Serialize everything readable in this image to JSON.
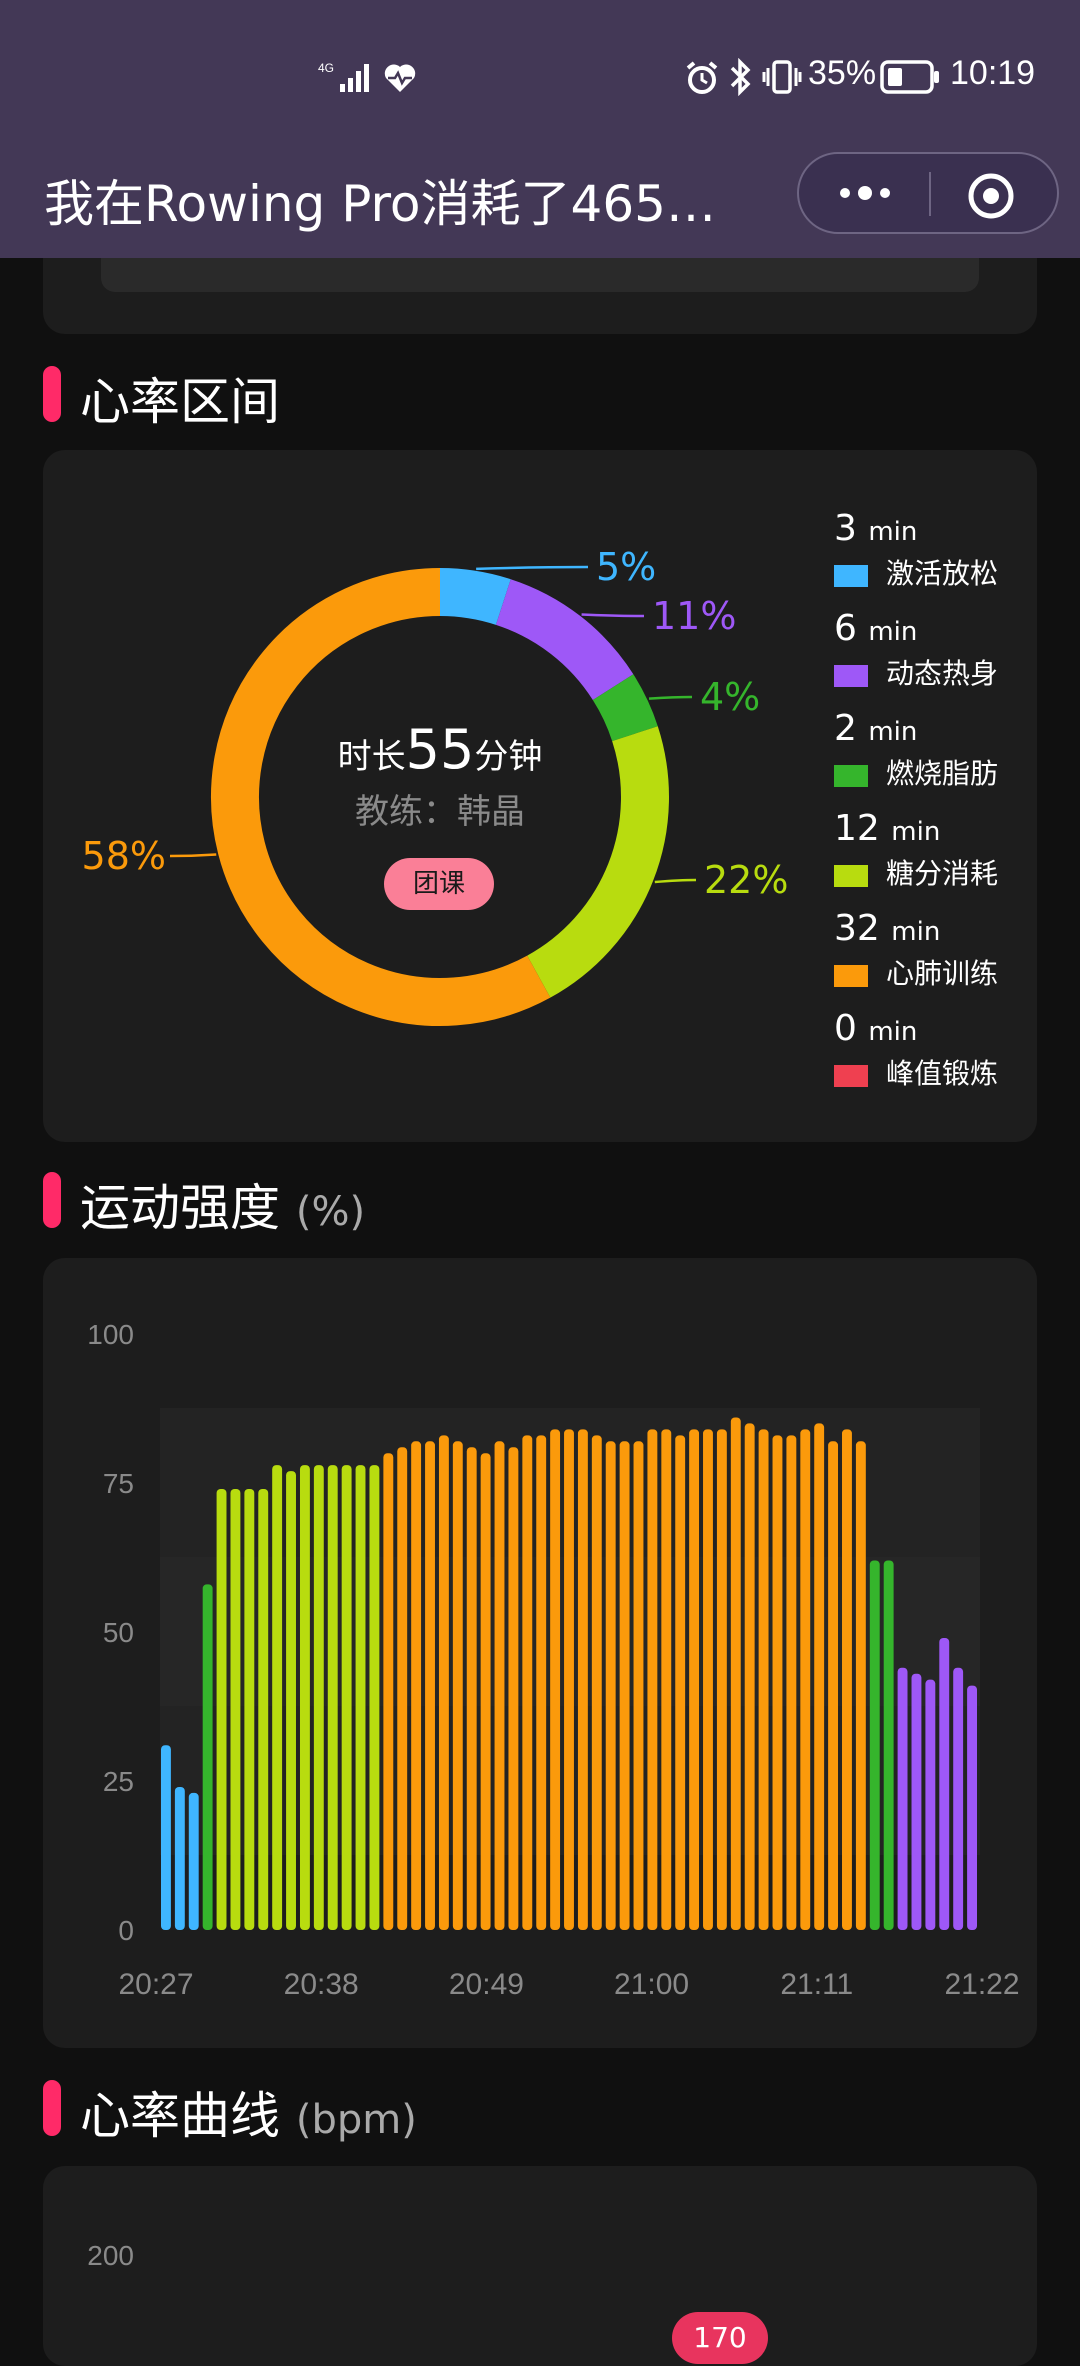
{
  "status_bar": {
    "network": "4G",
    "battery": "35%",
    "time": "10:19"
  },
  "nav": {
    "title": "我在Rowing Pro消耗了465…"
  },
  "heart_zone": {
    "title": "心率区间",
    "center_prefix": "时长",
    "center_value": "55",
    "center_suffix": "分钟",
    "coach": "教练：韩晶",
    "badge": "团课",
    "zones": [
      {
        "name": "激活放松",
        "minutes": "3",
        "unit": "min",
        "pct": "5%",
        "value": 5,
        "color": "#3fb6ff"
      },
      {
        "name": "动态热身",
        "minutes": "6",
        "unit": "min",
        "pct": "11%",
        "value": 11,
        "color": "#9e58f7"
      },
      {
        "name": "燃烧脂肪",
        "minutes": "2",
        "unit": "min",
        "pct": "4%",
        "value": 4,
        "color": "#35b52c"
      },
      {
        "name": "糖分消耗",
        "minutes": "12",
        "unit": "min",
        "pct": "22%",
        "value": 22,
        "color": "#b8dc0f"
      },
      {
        "name": "心肺训练",
        "minutes": "32",
        "unit": "min",
        "pct": "58%",
        "value": 58,
        "color": "#fb9a0b"
      },
      {
        "name": "峰值锻炼",
        "minutes": "0",
        "unit": "min",
        "pct": "",
        "value": 0,
        "color": "#ef4050"
      }
    ]
  },
  "intensity": {
    "title": "运动强度",
    "unit": "(%)"
  },
  "heart_curve": {
    "title": "心率曲线",
    "unit": "(bpm)",
    "y_top": "200",
    "peak_badge": "170"
  },
  "chart_data": {
    "type": "bar",
    "title": "运动强度",
    "ylabel": "(%)",
    "ylim": [
      0,
      100
    ],
    "yticks": [
      "0",
      "25",
      "50",
      "75",
      "100"
    ],
    "xticks": [
      "20:27",
      "20:38",
      "20:49",
      "21:00",
      "21:11",
      "21:22"
    ],
    "values": [
      31,
      24,
      23,
      58,
      74,
      74,
      74,
      74,
      78,
      77,
      78,
      78,
      78,
      78,
      78,
      78,
      80,
      81,
      82,
      82,
      83,
      82,
      81,
      80,
      82,
      81,
      83,
      83,
      84,
      84,
      84,
      83,
      82,
      82,
      82,
      84,
      84,
      83,
      84,
      84,
      84,
      86,
      85,
      84,
      83,
      83,
      84,
      85,
      82,
      84,
      82,
      62,
      62,
      44,
      43,
      42,
      49,
      44,
      41
    ],
    "zones": [
      0,
      0,
      0,
      2,
      3,
      3,
      3,
      3,
      3,
      3,
      3,
      3,
      3,
      3,
      3,
      3,
      4,
      4,
      4,
      4,
      4,
      4,
      4,
      4,
      4,
      4,
      4,
      4,
      4,
      4,
      4,
      4,
      4,
      4,
      4,
      4,
      4,
      4,
      4,
      4,
      4,
      4,
      4,
      4,
      4,
      4,
      4,
      4,
      4,
      4,
      4,
      2,
      2,
      1,
      1,
      1,
      1,
      1,
      1
    ],
    "zone_colors": [
      "#3fb6ff",
      "#9e58f7",
      "#35b52c",
      "#b8dc0f",
      "#fb9a0b"
    ],
    "grid": true
  }
}
